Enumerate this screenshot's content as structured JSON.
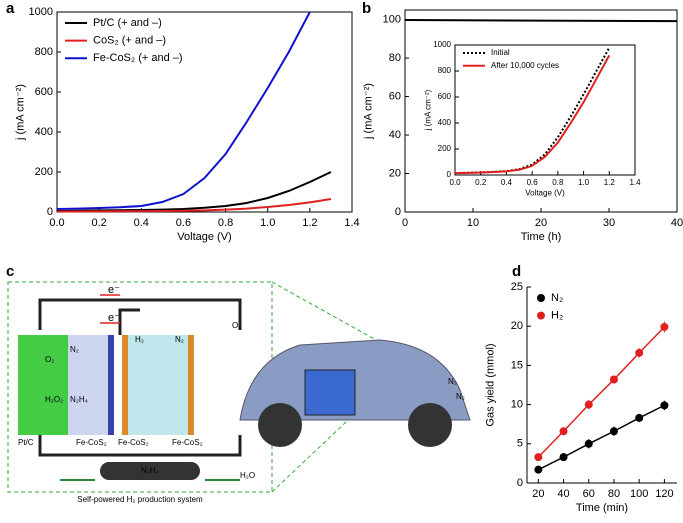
{
  "panel_labels": [
    "a",
    "b",
    "c",
    "d"
  ],
  "chart_data": [
    {
      "type": "line",
      "xlabel": "Voltage (V)",
      "ylabel": "j (mA cm⁻²)",
      "frame": true,
      "x": [
        0,
        0.1,
        0.2,
        0.3,
        0.4,
        0.5,
        0.6,
        0.7,
        0.8,
        0.9,
        1.0,
        1.1,
        1.2,
        1.3
      ],
      "xlim": [
        0,
        1.4
      ],
      "ylim": [
        0,
        1000
      ],
      "xticks": [
        {
          "value": 0,
          "label": "0.0"
        },
        {
          "value": 0.2,
          "label": "0.2"
        },
        {
          "value": 0.4,
          "label": "0.4"
        },
        {
          "value": 0.6,
          "label": "0.6"
        },
        {
          "value": 0.8,
          "label": "0.8"
        },
        {
          "value": 1.0,
          "label": "1.0"
        },
        {
          "value": 1.2,
          "label": "1.2"
        },
        {
          "value": 1.4,
          "label": "1.4"
        }
      ],
      "yticks": [
        0,
        200,
        400,
        600,
        800,
        1000
      ],
      "legend": "upper left",
      "series": [
        {
          "name": "Pt/C (+ and –)",
          "color": "#000000",
          "values": [
            5,
            6,
            8,
            9,
            10,
            12,
            15,
            21,
            30,
            45,
            70,
            105,
            150,
            200
          ]
        },
        {
          "name": "CoS₂ (+ and –)",
          "color": "#e02020",
          "values": [
            2,
            3,
            3,
            4,
            4,
            5,
            6,
            8,
            12,
            17,
            25,
            35,
            48,
            65
          ]
        },
        {
          "name": "Fe-CoS₂ (+ and –)",
          "color": "#1010d0",
          "values": [
            15,
            17,
            20,
            24,
            30,
            50,
            90,
            170,
            290,
            450,
            620,
            800,
            1000,
            null
          ]
        }
      ]
    },
    {
      "type": "line",
      "xlabel": "Time (h)",
      "ylabel": "j (mA cm⁻²)",
      "frame": true,
      "x": [
        0,
        40
      ],
      "xlim": [
        0,
        40
      ],
      "ylim": [
        0,
        105
      ],
      "xticks": [
        0,
        10,
        20,
        30,
        40
      ],
      "yticks": [
        0,
        20,
        40,
        60,
        80,
        100
      ],
      "series": [
        {
          "color": "#000000",
          "values": [
            99.8,
            99.2
          ]
        }
      ]
    },
    {
      "type": "line",
      "xlabel": "Voltage (V)",
      "ylabel": "j (mA cm⁻²)",
      "frame": true,
      "inset": true,
      "x": [
        0,
        0.1,
        0.2,
        0.3,
        0.4,
        0.5,
        0.6,
        0.7,
        0.8,
        0.9,
        1.0,
        1.1,
        1.2,
        1.3
      ],
      "xlim": [
        0,
        1.4
      ],
      "ylim": [
        0,
        1000
      ],
      "xticks": [
        {
          "value": 0,
          "label": "0.0"
        },
        {
          "value": 0.2,
          "label": "0.2"
        },
        {
          "value": 0.4,
          "label": "0.4"
        },
        {
          "value": 0.6,
          "label": "0.6"
        },
        {
          "value": 0.8,
          "label": "0.8"
        },
        {
          "value": 1.0,
          "label": "1.0"
        },
        {
          "value": 1.2,
          "label": "1.2"
        },
        {
          "value": 1.4,
          "label": "1.4"
        }
      ],
      "yticks": [
        0,
        200,
        400,
        600,
        800,
        1000
      ],
      "legend": "upper left",
      "series": [
        {
          "name": "Initial",
          "color": "#000000",
          "dash": "dotted",
          "values": [
            15,
            17,
            20,
            24,
            30,
            45,
            80,
            160,
            290,
            450,
            620,
            800,
            980,
            null
          ]
        },
        {
          "name": "After 10,000 cycles",
          "color": "#e02020",
          "values": [
            14,
            16,
            19,
            23,
            28,
            40,
            70,
            140,
            250,
            400,
            560,
            740,
            920,
            null
          ]
        }
      ]
    },
    {
      "type": "scatter",
      "xlabel": "Time (min)",
      "ylabel": "Gas yield (mmol)",
      "frame": false,
      "x": [
        20,
        40,
        60,
        80,
        100,
        120
      ],
      "xlim": [
        11,
        130
      ],
      "ylim": [
        0,
        25
      ],
      "xticks": [
        20,
        40,
        60,
        80,
        100,
        120
      ],
      "yticks": [
        0,
        5,
        10,
        15,
        20,
        25
      ],
      "legend": "upper left",
      "series": [
        {
          "name": "N₂",
          "color": "#000000",
          "values": [
            1.7,
            3.3,
            5.0,
            6.6,
            8.3,
            9.9
          ],
          "errors": [
            0.5,
            0.5,
            0.6,
            0.6,
            0.5,
            0.6
          ]
        },
        {
          "name": "H₂",
          "color": "#e02020",
          "values": [
            3.3,
            6.6,
            10.0,
            13.2,
            16.6,
            19.9
          ],
          "errors": [
            0.4,
            0.5,
            0.6,
            0.5,
            0.6,
            0.7
          ]
        }
      ]
    }
  ],
  "panel_c": {
    "labels": [
      "e⁻",
      "e⁻",
      "O₂",
      "H₂O₂",
      "N₂",
      "N₂H₄",
      "H₂",
      "N₂",
      "Pt/C",
      "Fe-CoS₂",
      "Fe-CoS₂",
      "Fe-CoS₂",
      "N₂H₄",
      "Self-powered H₂ production system",
      "O₂",
      "H₂O",
      "N₂",
      "N₂"
    ]
  }
}
